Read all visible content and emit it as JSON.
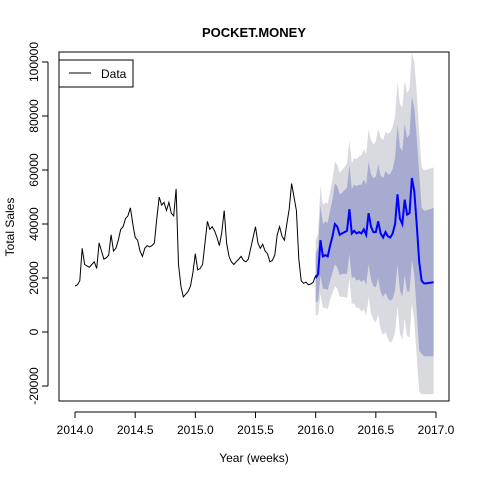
{
  "chart_data": {
    "type": "line",
    "title": "POCKET.MONEY",
    "xlabel": "Year (weeks)",
    "ylabel": "Total Sales",
    "xlim": [
      2014.0,
      2017.0
    ],
    "ylim": [
      -25000,
      100000
    ],
    "x_ticks": [
      2014.0,
      2014.5,
      2015.0,
      2015.5,
      2016.0,
      2016.5,
      2017.0
    ],
    "x_tick_labels": [
      "2014.0",
      "2014.5",
      "2015.0",
      "2015.5",
      "2016.0",
      "2016.5",
      "2017.0"
    ],
    "y_ticks": [
      -20000,
      0,
      20000,
      40000,
      60000,
      80000,
      100000
    ],
    "y_tick_labels": [
      "-20000",
      "0",
      "20000",
      "40000",
      "60000",
      "80000",
      "100000"
    ],
    "grid": false,
    "legend": {
      "placement": "top-left",
      "entries": [
        {
          "label": "Data",
          "color": "#000000"
        }
      ]
    },
    "colors": {
      "data": "#000000",
      "forecast": "#0000ff",
      "band80": "#a6abcf",
      "band95": "#d9d9e0"
    },
    "series": [
      {
        "name": "Data",
        "x": [
          2014.0,
          2014.02,
          2014.04,
          2014.06,
          2014.08,
          2014.1,
          2014.12,
          2014.14,
          2014.16,
          2014.18,
          2014.2,
          2014.22,
          2014.24,
          2014.26,
          2014.28,
          2014.3,
          2014.32,
          2014.34,
          2014.36,
          2014.38,
          2014.4,
          2014.42,
          2014.44,
          2014.46,
          2014.48,
          2014.5,
          2014.52,
          2014.54,
          2014.56,
          2014.58,
          2014.6,
          2014.62,
          2014.64,
          2014.66,
          2014.68,
          2014.7,
          2014.72,
          2014.74,
          2014.76,
          2014.78,
          2014.8,
          2014.82,
          2014.84,
          2014.86,
          2014.88,
          2014.9,
          2014.92,
          2014.94,
          2014.96,
          2014.98,
          2015.0,
          2015.02,
          2015.04,
          2015.06,
          2015.08,
          2015.1,
          2015.12,
          2015.14,
          2015.16,
          2015.18,
          2015.2,
          2015.22,
          2015.24,
          2015.26,
          2015.28,
          2015.3,
          2015.32,
          2015.34,
          2015.36,
          2015.38,
          2015.4,
          2015.42,
          2015.44,
          2015.46,
          2015.48,
          2015.5,
          2015.52,
          2015.54,
          2015.56,
          2015.58,
          2015.6,
          2015.62,
          2015.64,
          2015.66,
          2015.68,
          2015.7,
          2015.72,
          2015.74,
          2015.76,
          2015.78,
          2015.8,
          2015.82,
          2015.84,
          2015.86,
          2015.88,
          2015.9,
          2015.92,
          2015.94,
          2015.96,
          2015.98,
          2016.0
        ],
        "y": [
          17000,
          17500,
          19000,
          31000,
          25000,
          24500,
          24000,
          25000,
          26000,
          23500,
          33000,
          30000,
          27000,
          27500,
          28500,
          36000,
          30000,
          31000,
          34000,
          38000,
          39000,
          42000,
          43000,
          46000,
          40000,
          35000,
          34000,
          30000,
          28000,
          31000,
          32000,
          31500,
          32000,
          33000,
          42000,
          50000,
          47000,
          48000,
          45000,
          48000,
          44000,
          43000,
          53000,
          25000,
          17000,
          13000,
          14000,
          15000,
          17000,
          22000,
          29000,
          23000,
          23500,
          25000,
          33000,
          41000,
          38000,
          39000,
          37500,
          35000,
          32000,
          37000,
          45000,
          33000,
          28000,
          26000,
          25000,
          26000,
          27000,
          28000,
          26500,
          26000,
          27000,
          31000,
          35000,
          39000,
          33000,
          31000,
          32500,
          30000,
          29000,
          26000,
          26500,
          28500,
          36000,
          39000,
          35500,
          34000,
          40000,
          45500,
          55000,
          50000,
          45000,
          27000,
          19000,
          18000,
          18500,
          17500,
          17800,
          18500,
          21000
        ]
      },
      {
        "name": "",
        "x": [
          2016.0,
          2016.02,
          2016.04,
          2016.06,
          2016.08,
          2016.1,
          2016.12,
          2016.14,
          2016.16,
          2016.18,
          2016.2,
          2016.22,
          2016.24,
          2016.26,
          2016.28,
          2016.3,
          2016.32,
          2016.34,
          2016.36,
          2016.38,
          2016.4,
          2016.42,
          2016.44,
          2016.46,
          2016.48,
          2016.5,
          2016.52,
          2016.54,
          2016.56,
          2016.58,
          2016.6,
          2016.62,
          2016.64,
          2016.66,
          2016.68,
          2016.7,
          2016.72,
          2016.74,
          2016.76,
          2016.78,
          2016.8,
          2016.82,
          2016.84,
          2016.86,
          2016.88,
          2016.9,
          2016.92,
          2016.94,
          2016.96,
          2016.98
        ],
        "y": [
          20000,
          21500,
          34000,
          28000,
          28500,
          28000,
          32000,
          35500,
          40000,
          39000,
          36000,
          36500,
          37000,
          37500,
          45500,
          36500,
          37500,
          36500,
          37000,
          36500,
          38000,
          36000,
          44000,
          39000,
          37000,
          37000,
          41000,
          36500,
          35000,
          37000,
          35500,
          35000,
          36500,
          40000,
          51000,
          42000,
          40000,
          49000,
          43500,
          44000,
          57000,
          52000,
          40000,
          26000,
          19000,
          18000,
          18000,
          18200,
          18300,
          18500
        ],
        "lo80": [
          11000,
          11500,
          21000,
          16000,
          16000,
          15500,
          19000,
          22000,
          25000,
          24000,
          21000,
          21500,
          21500,
          21500,
          29000,
          20000,
          20500,
          19000,
          19500,
          18500,
          19500,
          17500,
          25000,
          19500,
          17000,
          16500,
          20000,
          15000,
          13000,
          14500,
          12500,
          11500,
          12500,
          15500,
          25000,
          15500,
          13000,
          21000,
          15000,
          15000,
          27000,
          21000,
          8000,
          -7000,
          -8000,
          -9000,
          -9000,
          -9000,
          -9000,
          -9000
        ],
        "hi80": [
          29000,
          31500,
          47000,
          40000,
          41000,
          40500,
          45000,
          49000,
          55000,
          54000,
          51000,
          51500,
          52500,
          53500,
          62000,
          53000,
          54500,
          54000,
          54500,
          54500,
          56500,
          54500,
          63000,
          58500,
          57000,
          57500,
          62000,
          58000,
          57000,
          59500,
          58500,
          58500,
          60500,
          64500,
          77000,
          68500,
          67000,
          77000,
          72000,
          73000,
          87000,
          83000,
          72000,
          59000,
          46000,
          45000,
          45000,
          45400,
          45600,
          46000
        ],
        "lo95": [
          6000,
          6500,
          14000,
          9000,
          9000,
          8500,
          12000,
          14500,
          17000,
          16000,
          13000,
          13000,
          13000,
          12500,
          20000,
          10500,
          10500,
          9000,
          9000,
          7500,
          8500,
          6000,
          13000,
          7000,
          4500,
          3500,
          6500,
          1000,
          -1000,
          0,
          -2500,
          -4000,
          -3000,
          0,
          9500,
          -500,
          -3000,
          5000,
          -1500,
          -2000,
          10500,
          4000,
          -9000,
          -22000,
          -23000,
          -23000,
          -23000,
          -23000,
          -23000,
          -23000
        ],
        "hi95": [
          34000,
          36500,
          54000,
          47000,
          48000,
          47500,
          52000,
          56500,
          63000,
          62000,
          59000,
          60000,
          61000,
          62500,
          71000,
          62500,
          64500,
          64000,
          65000,
          65500,
          67500,
          66000,
          75000,
          71000,
          69500,
          70500,
          75500,
          72000,
          71000,
          74000,
          73500,
          74000,
          76000,
          80000,
          92500,
          84500,
          83000,
          93000,
          88500,
          90000,
          103500,
          100000,
          89000,
          74000,
          61000,
          60000,
          60000,
          60400,
          60600,
          61000
        ]
      }
    ]
  }
}
